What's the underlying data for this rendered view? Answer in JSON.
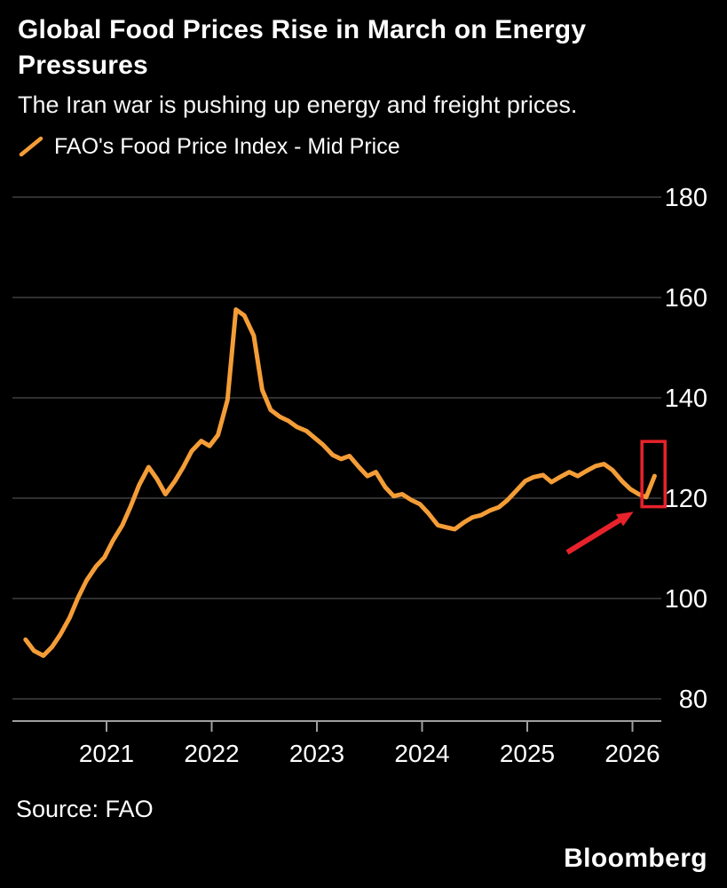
{
  "colors": {
    "background": "#000000",
    "line": "#f49d37",
    "grid": "#4d4d4d",
    "axis": "#9f9f9f",
    "text": "#ffffff",
    "annotation": "#e8222a"
  },
  "footer": {
    "brand": "Bloomberg"
  },
  "chart_data": {
    "type": "line",
    "title": "Global Food Prices Rise in March on Energy Pressures",
    "subtitle": "The Iran war is pushing up energy and freight prices.",
    "source": "Source: FAO",
    "grid": "horizontal",
    "legend_position": "top-left",
    "y_axis_side": "right",
    "x_range": [
      2020.1,
      2026.32
    ],
    "y_range": [
      80,
      180
    ],
    "x_ticks": [
      2021,
      2022,
      2023,
      2024,
      2025,
      2026
    ],
    "y_ticks": [
      180,
      160,
      140,
      120,
      100,
      80
    ],
    "series": [
      {
        "name": "FAO's Food Price Index - Mid Price",
        "points": [
          [
            2020.23,
            91.8
          ],
          [
            2020.31,
            89.6
          ],
          [
            2020.4,
            88.6
          ],
          [
            2020.48,
            90.3
          ],
          [
            2020.56,
            92.8
          ],
          [
            2020.65,
            96.2
          ],
          [
            2020.73,
            100.2
          ],
          [
            2020.81,
            103.6
          ],
          [
            2020.9,
            106.4
          ],
          [
            2020.98,
            108.2
          ],
          [
            2021.06,
            111.5
          ],
          [
            2021.15,
            114.6
          ],
          [
            2021.23,
            118.4
          ],
          [
            2021.31,
            122.6
          ],
          [
            2021.4,
            126.2
          ],
          [
            2021.48,
            123.8
          ],
          [
            2021.56,
            120.8
          ],
          [
            2021.65,
            123.4
          ],
          [
            2021.73,
            126.2
          ],
          [
            2021.81,
            129.4
          ],
          [
            2021.9,
            131.4
          ],
          [
            2021.98,
            130.4
          ],
          [
            2022.06,
            132.6
          ],
          [
            2022.15,
            139.6
          ],
          [
            2022.23,
            157.6
          ],
          [
            2022.31,
            156.4
          ],
          [
            2022.4,
            152.4
          ],
          [
            2022.48,
            141.6
          ],
          [
            2022.56,
            137.6
          ],
          [
            2022.65,
            136.2
          ],
          [
            2022.73,
            135.4
          ],
          [
            2022.81,
            134.2
          ],
          [
            2022.9,
            133.4
          ],
          [
            2022.98,
            132.0
          ],
          [
            2023.06,
            130.6
          ],
          [
            2023.15,
            128.6
          ],
          [
            2023.23,
            127.8
          ],
          [
            2023.31,
            128.4
          ],
          [
            2023.4,
            126.2
          ],
          [
            2023.48,
            124.4
          ],
          [
            2023.56,
            125.2
          ],
          [
            2023.65,
            122.2
          ],
          [
            2023.73,
            120.4
          ],
          [
            2023.81,
            120.8
          ],
          [
            2023.9,
            119.6
          ],
          [
            2023.98,
            118.8
          ],
          [
            2024.06,
            117.0
          ],
          [
            2024.15,
            114.6
          ],
          [
            2024.23,
            114.2
          ],
          [
            2024.31,
            113.8
          ],
          [
            2024.4,
            115.2
          ],
          [
            2024.48,
            116.2
          ],
          [
            2024.56,
            116.6
          ],
          [
            2024.65,
            117.6
          ],
          [
            2024.73,
            118.2
          ],
          [
            2024.81,
            119.6
          ],
          [
            2024.9,
            121.6
          ],
          [
            2024.98,
            123.4
          ],
          [
            2025.06,
            124.2
          ],
          [
            2025.15,
            124.6
          ],
          [
            2025.23,
            123.2
          ],
          [
            2025.31,
            124.2
          ],
          [
            2025.4,
            125.2
          ],
          [
            2025.48,
            124.4
          ],
          [
            2025.56,
            125.4
          ],
          [
            2025.65,
            126.4
          ],
          [
            2025.73,
            126.8
          ],
          [
            2025.81,
            125.6
          ],
          [
            2025.9,
            123.4
          ],
          [
            2025.98,
            121.8
          ],
          [
            2026.06,
            120.8
          ],
          [
            2026.13,
            120.2
          ],
          [
            2026.21,
            124.4
          ]
        ]
      }
    ],
    "annotations": {
      "highlight_box": {
        "x0": 2026.09,
        "x1": 2026.31,
        "v0": 118.3,
        "v1": 131.3
      },
      "arrow": {
        "from": [
          2025.38,
          109.2
        ],
        "to": [
          2026.01,
          117.3
        ]
      }
    }
  }
}
